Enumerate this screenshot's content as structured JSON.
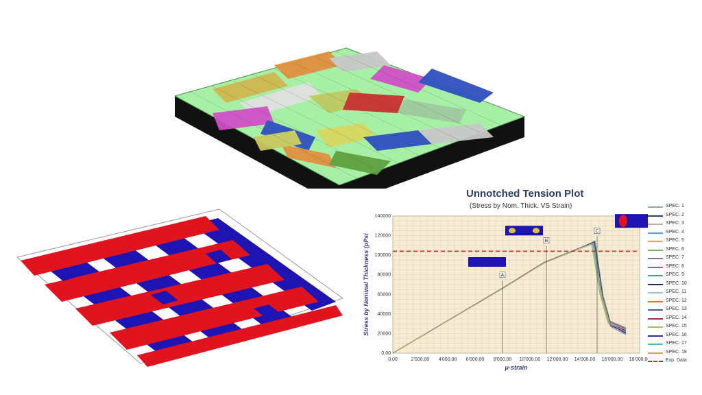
{
  "chart_data": {
    "type": "line",
    "title": "Unnotched Tension Plot",
    "subtitle": "(Stress by Nom. Thick. VS Strain)",
    "xlabel": "μ-strain",
    "ylabel": "Stress by Nominal Thickness (pPsi",
    "xlim": [
      0,
      18000
    ],
    "ylim": [
      0,
      140000
    ],
    "x_ticks": [
      "0.00",
      "2'000.00",
      "4'000.00",
      "6'000.00",
      "8'000.00",
      "10'000.00",
      "12'000.00",
      "14'000.00",
      "16'000.00",
      "18'000.00"
    ],
    "y_ticks": [
      "0.00",
      "20000",
      "40000",
      "60000",
      "80000",
      "100000",
      "120000",
      "140000"
    ],
    "grid": true,
    "legend_position": "right",
    "reference_line": {
      "name": "Exp. Data",
      "value": 104000,
      "color": "#d7262a"
    },
    "annotations": [
      "A",
      "B",
      "C"
    ],
    "series": [
      {
        "name": "SPEC. 1",
        "color": "#8da6c8",
        "values": [
          [
            0,
            0
          ],
          [
            8000,
            66000
          ],
          [
            11000,
            92000
          ],
          [
            13800,
            108000
          ],
          [
            14600,
            112000
          ],
          [
            15200,
            60000
          ],
          [
            15800,
            30000
          ],
          [
            17000,
            22000
          ]
        ]
      },
      {
        "name": "SPEC. 2",
        "color": "#2f3f6e",
        "values": [
          [
            0,
            0
          ],
          [
            8000,
            66500
          ],
          [
            11000,
            92500
          ],
          [
            13900,
            109000
          ],
          [
            14700,
            114000
          ],
          [
            15300,
            58000
          ],
          [
            15900,
            28000
          ],
          [
            17000,
            21000
          ]
        ]
      },
      {
        "name": "SPEC. 3",
        "color": "#b0b0b0",
        "values": [
          [
            0,
            0
          ],
          [
            8000,
            66000
          ],
          [
            11000,
            92000
          ],
          [
            13700,
            107000
          ],
          [
            14500,
            111000
          ],
          [
            15100,
            62000
          ],
          [
            15700,
            32000
          ],
          [
            17000,
            25000
          ]
        ]
      },
      {
        "name": "SPEC. 4",
        "color": "#5ca0c8",
        "values": [
          [
            0,
            0
          ],
          [
            8000,
            66200
          ],
          [
            11000,
            92200
          ],
          [
            13800,
            108500
          ],
          [
            14600,
            113000
          ],
          [
            15200,
            59000
          ],
          [
            15800,
            29000
          ],
          [
            17000,
            23000
          ]
        ]
      },
      {
        "name": "SPEC. 5",
        "color": "#e0a070",
        "values": [
          [
            0,
            0
          ],
          [
            8000,
            66100
          ],
          [
            11000,
            92100
          ],
          [
            13850,
            108000
          ],
          [
            14650,
            112500
          ],
          [
            15250,
            61000
          ],
          [
            15850,
            31000
          ],
          [
            17000,
            24000
          ]
        ]
      },
      {
        "name": "SPEC. 6",
        "color": "#7fb06a",
        "values": [
          [
            0,
            0
          ],
          [
            8000,
            65800
          ],
          [
            11000,
            91800
          ],
          [
            13750,
            107500
          ],
          [
            14550,
            111500
          ],
          [
            15150,
            60000
          ],
          [
            15750,
            30000
          ],
          [
            17000,
            20000
          ]
        ]
      },
      {
        "name": "SPEC. 7",
        "color": "#8b6bb0",
        "values": [
          [
            0,
            0
          ],
          [
            8000,
            66300
          ],
          [
            11000,
            92300
          ],
          [
            13900,
            108800
          ],
          [
            14700,
            113500
          ],
          [
            15300,
            57000
          ],
          [
            15900,
            27000
          ],
          [
            17000,
            19000
          ]
        ]
      },
      {
        "name": "SPEC. 8",
        "color": "#c04a9a",
        "values": [
          [
            0,
            0
          ],
          [
            8000,
            66000
          ],
          [
            11000,
            92000
          ],
          [
            13800,
            108000
          ],
          [
            14600,
            112000
          ],
          [
            15200,
            63000
          ],
          [
            15800,
            33000
          ],
          [
            17000,
            26000
          ]
        ]
      },
      {
        "name": "SPEC. 9",
        "color": "#4a9a8a",
        "values": [
          [
            0,
            0
          ],
          [
            8000,
            66400
          ],
          [
            11000,
            92400
          ],
          [
            13950,
            109000
          ],
          [
            14750,
            114500
          ],
          [
            15350,
            58000
          ],
          [
            15950,
            28000
          ],
          [
            17000,
            22000
          ]
        ]
      },
      {
        "name": "SPEC. 10",
        "color": "#1e2a6a",
        "values": [
          [
            0,
            0
          ],
          [
            8000,
            66000
          ],
          [
            11000,
            92000
          ],
          [
            13800,
            108000
          ],
          [
            14600,
            112000
          ],
          [
            15200,
            60000
          ],
          [
            15800,
            30000
          ],
          [
            17000,
            23000
          ]
        ]
      },
      {
        "name": "SPEC. 11",
        "color": "#a8c0e0",
        "values": [
          [
            0,
            0
          ],
          [
            8000,
            65900
          ],
          [
            11000,
            91900
          ],
          [
            13750,
            107000
          ],
          [
            14550,
            111000
          ],
          [
            15150,
            61000
          ],
          [
            15750,
            31000
          ],
          [
            17000,
            24000
          ]
        ]
      },
      {
        "name": "SPEC. 12",
        "color": "#e07030",
        "values": [
          [
            0,
            0
          ],
          [
            8000,
            66000
          ],
          [
            11000,
            92000
          ],
          [
            13800,
            108000
          ],
          [
            14600,
            112000
          ],
          [
            15200,
            60000
          ],
          [
            15800,
            30000
          ],
          [
            17000,
            21000
          ]
        ]
      },
      {
        "name": "SPEC. 13",
        "color": "#4a5aa8",
        "values": [
          [
            0,
            0
          ],
          [
            8000,
            66200
          ],
          [
            11000,
            92200
          ],
          [
            13850,
            108500
          ],
          [
            14650,
            113000
          ],
          [
            15250,
            59000
          ],
          [
            15850,
            29000
          ],
          [
            17000,
            20000
          ]
        ]
      },
      {
        "name": "SPEC. 14",
        "color": "#9a3050",
        "values": [
          [
            0,
            0
          ],
          [
            8000,
            66100
          ],
          [
            11000,
            92100
          ],
          [
            13800,
            108200
          ],
          [
            14600,
            112300
          ],
          [
            15200,
            62000
          ],
          [
            15800,
            32000
          ],
          [
            17000,
            25000
          ]
        ]
      },
      {
        "name": "SPEC. 15",
        "color": "#a0c050",
        "values": [
          [
            0,
            0
          ],
          [
            8000,
            65800
          ],
          [
            11000,
            91800
          ],
          [
            13700,
            107200
          ],
          [
            14500,
            111200
          ],
          [
            15100,
            60500
          ],
          [
            15700,
            30500
          ],
          [
            17000,
            22000
          ]
        ]
      },
      {
        "name": "SPEC. 16",
        "color": "#30308a",
        "values": [
          [
            0,
            0
          ],
          [
            8000,
            66300
          ],
          [
            11000,
            92300
          ],
          [
            13900,
            108700
          ],
          [
            14700,
            113700
          ],
          [
            15300,
            58500
          ],
          [
            15900,
            28500
          ],
          [
            17000,
            21000
          ]
        ]
      },
      {
        "name": "SPEC. 17",
        "color": "#50b0c8",
        "values": [
          [
            0,
            0
          ],
          [
            8000,
            66000
          ],
          [
            11000,
            92000
          ],
          [
            13800,
            108000
          ],
          [
            14600,
            112000
          ],
          [
            15200,
            61500
          ],
          [
            15800,
            31500
          ],
          [
            17000,
            24000
          ]
        ]
      },
      {
        "name": "SPEC. 18",
        "color": "#c8a060",
        "values": [
          [
            0,
            0
          ],
          [
            8000,
            66100
          ],
          [
            11000,
            92100
          ],
          [
            13850,
            108300
          ],
          [
            14650,
            112600
          ],
          [
            15250,
            59500
          ],
          [
            15850,
            29500
          ],
          [
            17000,
            22000
          ]
        ]
      }
    ]
  },
  "legend": {
    "items": [
      "SPEC. 1",
      "SPEC. 2",
      "SPEC. 3",
      "SPEC. 4",
      "SPEC. 5",
      "SPEC. 6",
      "SPEC. 7",
      "SPEC. 8",
      "SPEC. 9",
      "SPEC. 10",
      "SPEC. 11",
      "SPEC. 12",
      "SPEC. 13",
      "SPEC. 14",
      "SPEC. 15",
      "SPEC. 16",
      "SPEC. 17",
      "SPEC. 18",
      "Exp. Data"
    ],
    "colors": [
      "#8da6c8",
      "#2f3f6e",
      "#b0b0b0",
      "#5ca0c8",
      "#e0a070",
      "#7fb06a",
      "#8b6bb0",
      "#c04a9a",
      "#4a9a8a",
      "#1e2a6a",
      "#a8c0e0",
      "#e07030",
      "#4a5aa8",
      "#9a3050",
      "#a0c050",
      "#30308a",
      "#50b0c8",
      "#c8a060",
      "#d7262a"
    ]
  },
  "colors": {
    "mesh_background": "#a6f0a6",
    "yarn_red": "#e0141e",
    "yarn_blue": "#1e14b4",
    "plot_background": "#f6ecd6"
  }
}
